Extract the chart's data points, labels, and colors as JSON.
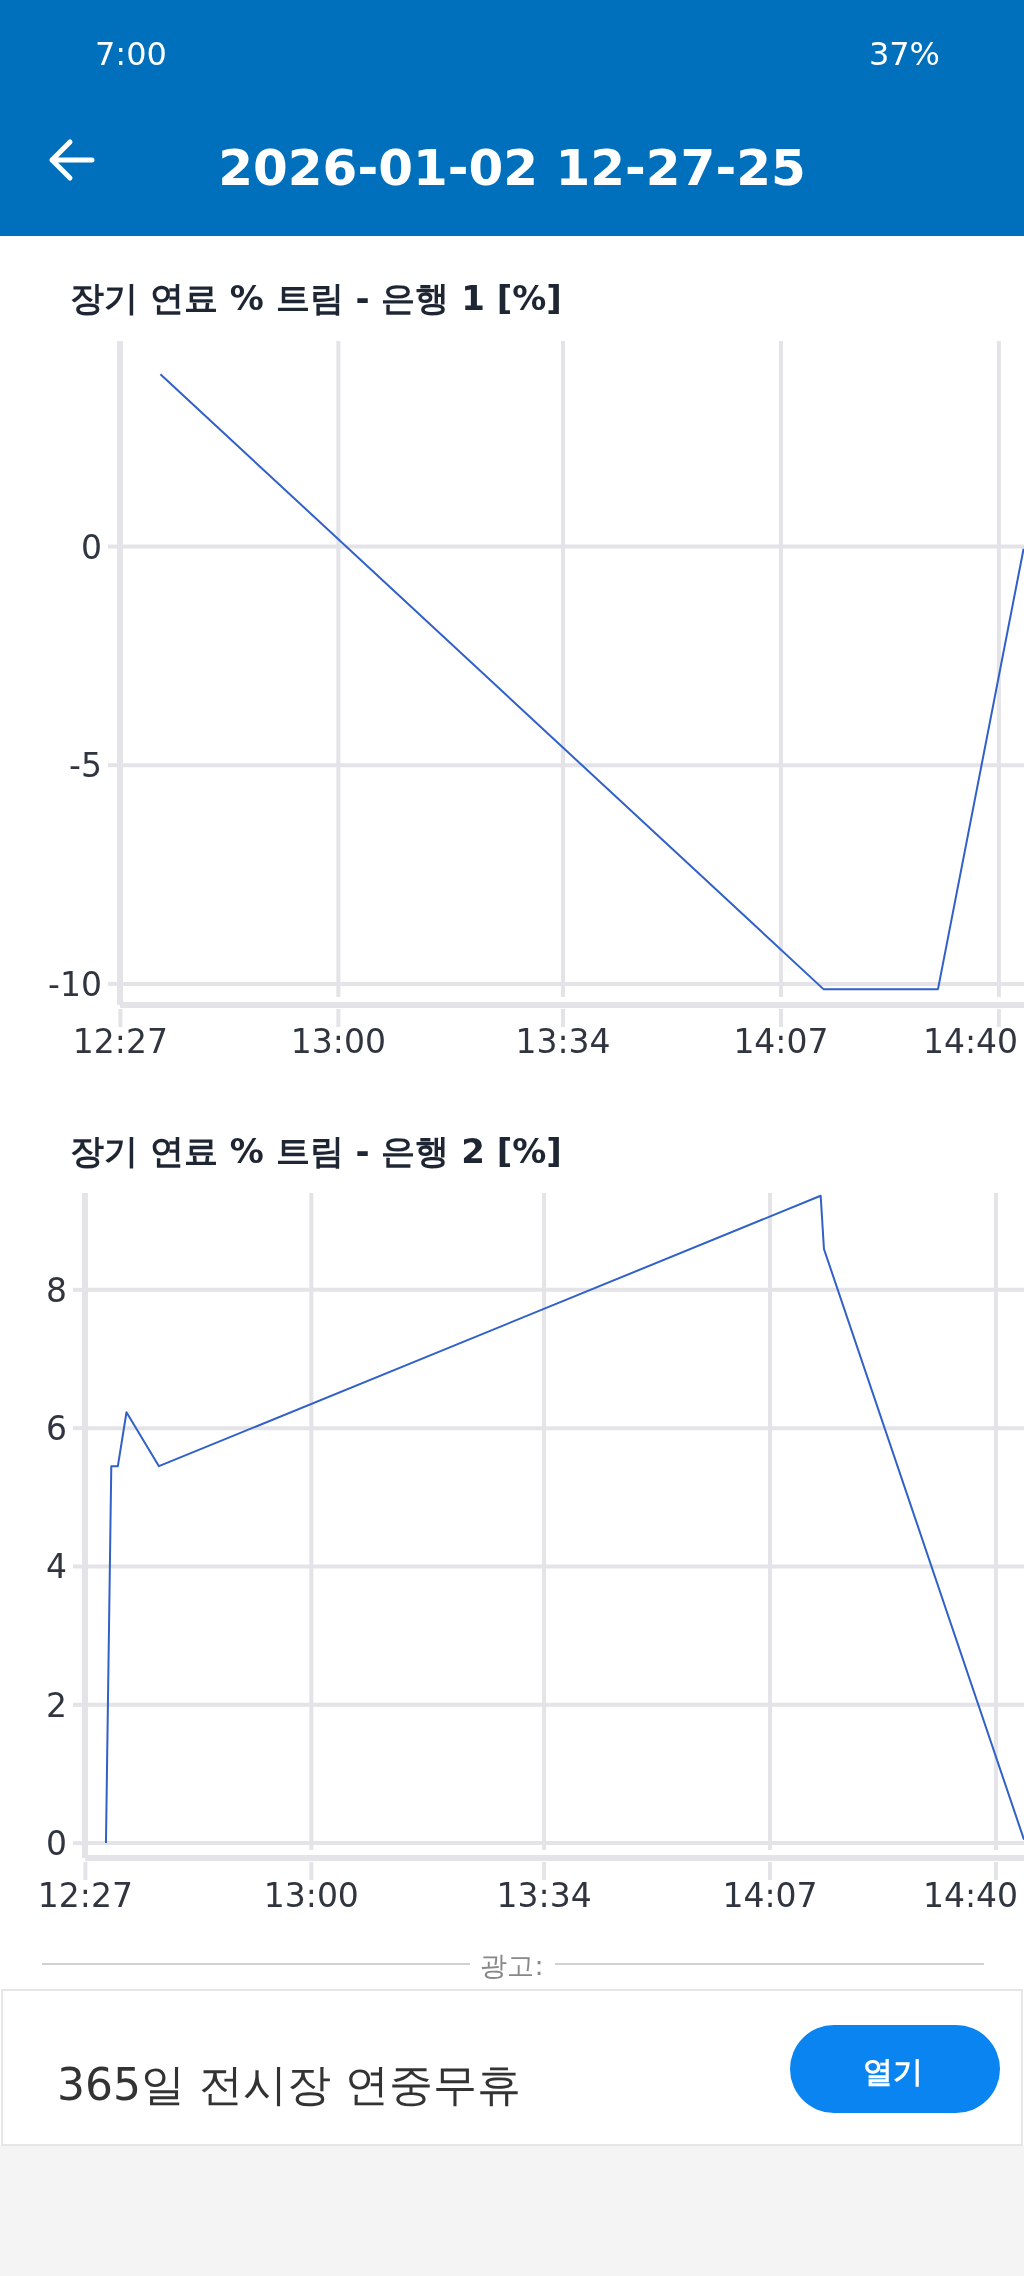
{
  "chart_data": [
    {
      "type": "line",
      "title": "장기 연료 % 트림 - 은행 1 [%]",
      "color": "#3060c8",
      "x": [
        12.551,
        14.224,
        14.513,
        14.729
      ],
      "values": [
        3.94,
        -10.12,
        -10.12,
        -0.05
      ],
      "xlim": [
        12.449,
        14.73
      ],
      "ylim": [
        -10.3,
        4.7
      ],
      "xticks": [
        {
          "value": 12.45,
          "label": "12:27"
        },
        {
          "value": 13,
          "label": "13:00"
        },
        {
          "value": 13.5667,
          "label": "13:34"
        },
        {
          "value": 14.1167,
          "label": "14:07"
        },
        {
          "value": 14.6667,
          "label": "14:40"
        }
      ],
      "yticks": [
        -10,
        -5,
        0
      ],
      "grid": true,
      "annotations": [
        "2026-01-02 12-27-25",
        "7:00",
        "37%"
      ]
    },
    {
      "type": "line",
      "title": "장기 연료 % 트림 - 은행 2 [%]",
      "color": "#3060c8",
      "x": [
        12.5,
        12.513,
        12.529,
        12.55,
        12.629,
        14.24,
        14.248,
        14.735
      ],
      "values": [
        0,
        5.45,
        5.45,
        6.23,
        5.45,
        9.36,
        8.59,
        0.05
      ],
      "xlim": [
        12.449,
        14.735
      ],
      "ylim": [
        -0.1,
        9.4
      ],
      "xticks": [
        {
          "value": 12.45,
          "label": "12:27"
        },
        {
          "value": 13,
          "label": "13:00"
        },
        {
          "value": 13.5667,
          "label": "13:34"
        },
        {
          "value": 14.1167,
          "label": "14:07"
        },
        {
          "value": 14.6667,
          "label": "14:40"
        }
      ],
      "yticks": [
        0,
        2,
        4,
        6,
        8
      ],
      "grid": true,
      "annotations": [
        "광고:",
        "365일 전시장 연중무휴",
        "열기"
      ]
    }
  ]
}
